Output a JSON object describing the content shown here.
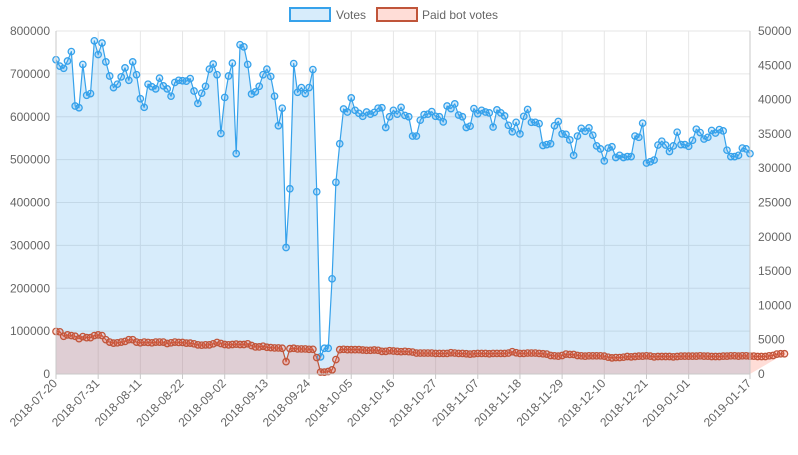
{
  "chart_data": {
    "type": "line",
    "legend_position": "top",
    "grid": true,
    "x_tick_labels": [
      "2018-07-20",
      "2018-07-31",
      "2018-08-11",
      "2018-08-22",
      "2018-09-02",
      "2018-09-13",
      "2018-09-24",
      "2018-10-05",
      "2018-10-16",
      "2018-10-27",
      "2018-11-07",
      "2018-11-18",
      "2018-11-29",
      "2018-12-10",
      "2018-12-21",
      "2019-01-01",
      "2019-01-17"
    ],
    "x_start": "2018-07-20",
    "y_left": {
      "min": 0,
      "max": 800000,
      "ticks": [
        "0",
        "100000",
        "200000",
        "300000",
        "400000",
        "500000",
        "600000",
        "700000",
        "800000"
      ]
    },
    "y_right": {
      "min": 0,
      "max": 50000,
      "ticks": [
        "0",
        "5000",
        "10000",
        "15000",
        "20000",
        "25000",
        "30000",
        "35000",
        "40000",
        "45000",
        "50000"
      ]
    },
    "series": [
      {
        "name": "Votes",
        "axis": "left",
        "color": "#36a2eb",
        "fill": "rgba(54,162,235,0.2)",
        "values": [
          733000,
          718000,
          713000,
          730000,
          752000,
          625000,
          621000,
          722000,
          650000,
          654000,
          777000,
          745000,
          772000,
          728000,
          695000,
          668000,
          676000,
          693000,
          714000,
          685000,
          728000,
          698000,
          642000,
          622000,
          676000,
          670000,
          665000,
          690000,
          672000,
          665000,
          648000,
          680000,
          685000,
          684000,
          683000,
          689000,
          660000,
          631000,
          655000,
          671000,
          711000,
          723000,
          698000,
          561000,
          645000,
          695000,
          725000,
          514000,
          768000,
          763000,
          722000,
          653000,
          658000,
          671000,
          698000,
          711000,
          694000,
          648000,
          579000,
          620000,
          295000,
          432000,
          724000,
          657000,
          668000,
          654000,
          668000,
          710000,
          425000,
          40000,
          60000,
          60000,
          222000,
          447000,
          537000,
          618000,
          611000,
          644000,
          615000,
          608000,
          601000,
          611000,
          606000,
          610000,
          620000,
          621000,
          575000,
          600000,
          615000,
          606000,
          622000,
          603000,
          600000,
          555000,
          555000,
          592000,
          605000,
          606000,
          612000,
          601000,
          600000,
          588000,
          625000,
          619000,
          630000,
          604000,
          600000,
          575000,
          578000,
          619000,
          607000,
          615000,
          611000,
          609000,
          576000,
          616000,
          609000,
          602000,
          580000,
          565000,
          587000,
          560000,
          601000,
          617000,
          587000,
          587000,
          584000,
          533000,
          535000,
          537000,
          579000,
          589000,
          560000,
          559000,
          546000,
          510000,
          555000,
          573000,
          566000,
          574000,
          557000,
          532000,
          525000,
          497000,
          527000,
          530000,
          505000,
          510000,
          505000,
          507000,
          507000,
          555000,
          552000,
          585000,
          492000,
          495000,
          499000,
          534000,
          543000,
          534000,
          519000,
          532000,
          564000,
          535000,
          535000,
          531000,
          545000,
          571000,
          563000,
          548000,
          552000,
          568000,
          562000,
          570000,
          567000,
          522000,
          507000,
          507000,
          510000,
          527000,
          525000,
          514000
        ]
      },
      {
        "name": "Paid bot votes",
        "axis": "right",
        "color": "#c0553a",
        "fill": "rgba(255,99,71,0.22)",
        "values": [
          6200,
          6150,
          5500,
          5700,
          5600,
          5500,
          5150,
          5450,
          5300,
          5300,
          5600,
          5700,
          5600,
          5000,
          4650,
          4500,
          4550,
          4650,
          4750,
          5000,
          5000,
          4650,
          4550,
          4650,
          4600,
          4550,
          4650,
          4650,
          4650,
          4450,
          4550,
          4650,
          4600,
          4600,
          4500,
          4500,
          4400,
          4250,
          4200,
          4250,
          4250,
          4400,
          4600,
          4450,
          4300,
          4250,
          4300,
          4350,
          4300,
          4300,
          4400,
          4150,
          3950,
          3950,
          4050,
          3900,
          3850,
          3800,
          3800,
          3750,
          1800,
          3700,
          3750,
          3650,
          3650,
          3650,
          3600,
          3600,
          2400,
          280,
          270,
          360,
          600,
          2100,
          3550,
          3600,
          3550,
          3550,
          3550,
          3550,
          3500,
          3450,
          3450,
          3500,
          3450,
          3300,
          3300,
          3400,
          3350,
          3300,
          3250,
          3300,
          3250,
          3200,
          3050,
          3050,
          3050,
          3050,
          3050,
          3000,
          3000,
          3000,
          3000,
          3100,
          3050,
          3000,
          3000,
          2950,
          2900,
          2950,
          3000,
          3000,
          3000,
          2950,
          3000,
          3000,
          3000,
          3000,
          3050,
          3250,
          3100,
          3000,
          3000,
          3050,
          3050,
          3050,
          3000,
          2950,
          2900,
          2700,
          2650,
          2600,
          2700,
          2900,
          2850,
          2850,
          2700,
          2650,
          2600,
          2650,
          2650,
          2650,
          2650,
          2600,
          2450,
          2350,
          2400,
          2400,
          2450,
          2550,
          2500,
          2550,
          2600,
          2600,
          2650,
          2600,
          2500,
          2550,
          2550,
          2550,
          2550,
          2500,
          2550,
          2600,
          2600,
          2600,
          2600,
          2600,
          2650,
          2600,
          2600,
          2550,
          2550,
          2550,
          2600,
          2600,
          2650,
          2650,
          2600,
          2650,
          2650,
          2600,
          2600,
          2550,
          2550,
          2550,
          2650,
          2700,
          2900,
          2950,
          2950
        ]
      }
    ]
  }
}
